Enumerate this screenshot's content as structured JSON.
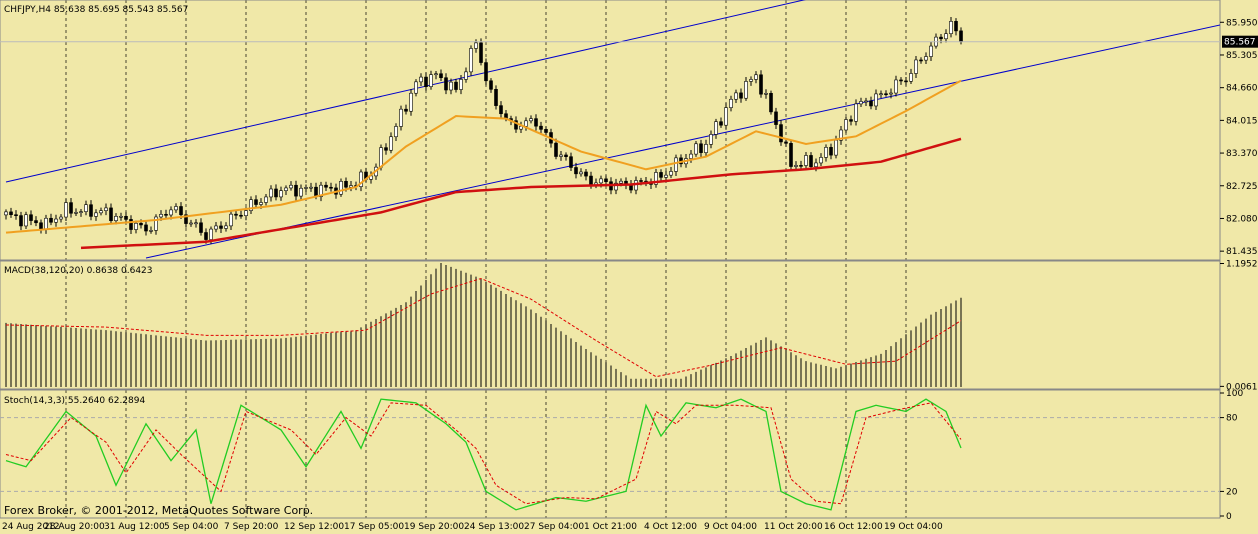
{
  "chart_data": {
    "type": "candlestick",
    "symbol_header": "CHFJPY,H4  85.638 85.695 85.543 85.567",
    "current_price": 85.567,
    "current_price_label": "85.567",
    "price_axis": {
      "range": [
        81.3,
        86.35
      ],
      "ticks": [
        "85.950",
        "85.305",
        "84.660",
        "84.015",
        "83.370",
        "82.725",
        "82.080",
        "81.435"
      ]
    },
    "time_labels": [
      "24 Aug 2012",
      "28 Aug 20:00",
      "31 Aug 12:00",
      "5 Sep 04:00",
      "7 Sep 20:00",
      "12 Sep 12:00",
      "17 Sep 05:00",
      "19 Sep 20:00",
      "24 Sep 13:00",
      "27 Sep 04:00",
      "1 Oct 21:00",
      "4 Oct 12:00",
      "9 Oct 04:00",
      "11 Oct 20:00",
      "16 Oct 12:00",
      "19 Oct 04:00"
    ],
    "close_keypoints": [
      {
        "bar": 0,
        "price": 82.15
      },
      {
        "bar": 8,
        "price": 81.95
      },
      {
        "bar": 12,
        "price": 82.25
      },
      {
        "bar": 20,
        "price": 82.2
      },
      {
        "bar": 28,
        "price": 81.85
      },
      {
        "bar": 33,
        "price": 82.3
      },
      {
        "bar": 40,
        "price": 81.75
      },
      {
        "bar": 44,
        "price": 82.0
      },
      {
        "bar": 50,
        "price": 82.4
      },
      {
        "bar": 55,
        "price": 82.65
      },
      {
        "bar": 62,
        "price": 82.65
      },
      {
        "bar": 68,
        "price": 82.7
      },
      {
        "bar": 73,
        "price": 82.95
      },
      {
        "bar": 78,
        "price": 83.9
      },
      {
        "bar": 82,
        "price": 84.75
      },
      {
        "bar": 86,
        "price": 84.9
      },
      {
        "bar": 90,
        "price": 84.6
      },
      {
        "bar": 94,
        "price": 85.55
      },
      {
        "bar": 97,
        "price": 84.5
      },
      {
        "bar": 101,
        "price": 83.9
      },
      {
        "bar": 106,
        "price": 84.0
      },
      {
        "bar": 110,
        "price": 83.4
      },
      {
        "bar": 116,
        "price": 82.85
      },
      {
        "bar": 121,
        "price": 82.75
      },
      {
        "bar": 126,
        "price": 82.75
      },
      {
        "bar": 131,
        "price": 82.9
      },
      {
        "bar": 136,
        "price": 83.3
      },
      {
        "bar": 140,
        "price": 83.55
      },
      {
        "bar": 145,
        "price": 84.4
      },
      {
        "bar": 150,
        "price": 84.9
      },
      {
        "bar": 154,
        "price": 83.95
      },
      {
        "bar": 157,
        "price": 83.15
      },
      {
        "bar": 162,
        "price": 83.2
      },
      {
        "bar": 165,
        "price": 83.45
      },
      {
        "bar": 170,
        "price": 84.3
      },
      {
        "bar": 175,
        "price": 84.5
      },
      {
        "bar": 180,
        "price": 84.85
      },
      {
        "bar": 184,
        "price": 85.35
      },
      {
        "bar": 189,
        "price": 85.9
      },
      {
        "bar": 191,
        "price": 85.567
      }
    ],
    "moving_averages": [
      {
        "color": "#f0a020",
        "points": [
          {
            "bar": 0,
            "price": 81.8
          },
          {
            "bar": 30,
            "price": 82.05
          },
          {
            "bar": 55,
            "price": 82.35
          },
          {
            "bar": 70,
            "price": 82.7
          },
          {
            "bar": 80,
            "price": 83.5
          },
          {
            "bar": 90,
            "price": 84.1
          },
          {
            "bar": 100,
            "price": 84.05
          },
          {
            "bar": 115,
            "price": 83.4
          },
          {
            "bar": 128,
            "price": 83.05
          },
          {
            "bar": 140,
            "price": 83.3
          },
          {
            "bar": 150,
            "price": 83.8
          },
          {
            "bar": 160,
            "price": 83.55
          },
          {
            "bar": 170,
            "price": 83.7
          },
          {
            "bar": 180,
            "price": 84.2
          },
          {
            "bar": 191,
            "price": 84.8
          }
        ]
      },
      {
        "color": "#d01010",
        "points": [
          {
            "bar": 15,
            "price": 81.5
          },
          {
            "bar": 40,
            "price": 81.62
          },
          {
            "bar": 60,
            "price": 81.95
          },
          {
            "bar": 75,
            "price": 82.2
          },
          {
            "bar": 90,
            "price": 82.6
          },
          {
            "bar": 105,
            "price": 82.7
          },
          {
            "bar": 125,
            "price": 82.75
          },
          {
            "bar": 145,
            "price": 82.95
          },
          {
            "bar": 160,
            "price": 83.05
          },
          {
            "bar": 175,
            "price": 83.2
          },
          {
            "bar": 191,
            "price": 83.65
          }
        ]
      }
    ],
    "trend_lines": [
      {
        "color": "#0000cc",
        "from": {
          "bar": 0,
          "price": 82.8
        },
        "to": {
          "bar": 160,
          "price": 86.4
        }
      },
      {
        "color": "#0000cc",
        "from": {
          "bar": 28,
          "price": 81.3
        },
        "to": {
          "bar": 243,
          "price": 85.9
        }
      }
    ],
    "macd": {
      "label": "MACD(38,120,20)  0.8638 0.6423",
      "range": [
        0.0,
        1.2
      ],
      "ticks": [
        "1.1952",
        "0.0061"
      ],
      "hist_keypoints": [
        {
          "bar": 0,
          "value": 0.62
        },
        {
          "bar": 20,
          "value": 0.55
        },
        {
          "bar": 40,
          "value": 0.45
        },
        {
          "bar": 55,
          "value": 0.47
        },
        {
          "bar": 70,
          "value": 0.55
        },
        {
          "bar": 80,
          "value": 0.82
        },
        {
          "bar": 87,
          "value": 1.2
        },
        {
          "bar": 95,
          "value": 1.05
        },
        {
          "bar": 105,
          "value": 0.75
        },
        {
          "bar": 115,
          "value": 0.4
        },
        {
          "bar": 125,
          "value": 0.08
        },
        {
          "bar": 135,
          "value": 0.08
        },
        {
          "bar": 145,
          "value": 0.3
        },
        {
          "bar": 152,
          "value": 0.48
        },
        {
          "bar": 160,
          "value": 0.25
        },
        {
          "bar": 166,
          "value": 0.18
        },
        {
          "bar": 175,
          "value": 0.32
        },
        {
          "bar": 185,
          "value": 0.7
        },
        {
          "bar": 191,
          "value": 0.8638
        }
      ],
      "signal_keypoints": [
        {
          "bar": 0,
          "value": 0.6
        },
        {
          "bar": 20,
          "value": 0.58
        },
        {
          "bar": 40,
          "value": 0.5
        },
        {
          "bar": 55,
          "value": 0.5
        },
        {
          "bar": 72,
          "value": 0.55
        },
        {
          "bar": 85,
          "value": 0.9
        },
        {
          "bar": 95,
          "value": 1.05
        },
        {
          "bar": 105,
          "value": 0.85
        },
        {
          "bar": 118,
          "value": 0.45
        },
        {
          "bar": 130,
          "value": 0.1
        },
        {
          "bar": 140,
          "value": 0.2
        },
        {
          "bar": 155,
          "value": 0.38
        },
        {
          "bar": 168,
          "value": 0.22
        },
        {
          "bar": 178,
          "value": 0.25
        },
        {
          "bar": 191,
          "value": 0.6423
        }
      ]
    },
    "stochastic": {
      "label": "Stoch(14,3,3)  55.2640 62.2894",
      "range": [
        0,
        100
      ],
      "ticks": [
        "100",
        "80",
        "20",
        "0"
      ],
      "levels": [
        80,
        20
      ],
      "k_keypoints": [
        {
          "bar": 0,
          "value": 45
        },
        {
          "bar": 4,
          "value": 40
        },
        {
          "bar": 12,
          "value": 85
        },
        {
          "bar": 18,
          "value": 65
        },
        {
          "bar": 22,
          "value": 25
        },
        {
          "bar": 28,
          "value": 75
        },
        {
          "bar": 33,
          "value": 45
        },
        {
          "bar": 38,
          "value": 70
        },
        {
          "bar": 41,
          "value": 10
        },
        {
          "bar": 47,
          "value": 90
        },
        {
          "bar": 55,
          "value": 70
        },
        {
          "bar": 60,
          "value": 40
        },
        {
          "bar": 67,
          "value": 85
        },
        {
          "bar": 71,
          "value": 55
        },
        {
          "bar": 75,
          "value": 95
        },
        {
          "bar": 82,
          "value": 92
        },
        {
          "bar": 88,
          "value": 75
        },
        {
          "bar": 92,
          "value": 60
        },
        {
          "bar": 96,
          "value": 20
        },
        {
          "bar": 102,
          "value": 5
        },
        {
          "bar": 110,
          "value": 15
        },
        {
          "bar": 116,
          "value": 12
        },
        {
          "bar": 124,
          "value": 20
        },
        {
          "bar": 128,
          "value": 90
        },
        {
          "bar": 131,
          "value": 65
        },
        {
          "bar": 136,
          "value": 92
        },
        {
          "bar": 142,
          "value": 88
        },
        {
          "bar": 147,
          "value": 95
        },
        {
          "bar": 152,
          "value": 85
        },
        {
          "bar": 155,
          "value": 20
        },
        {
          "bar": 160,
          "value": 10
        },
        {
          "bar": 165,
          "value": 5
        },
        {
          "bar": 170,
          "value": 85
        },
        {
          "bar": 174,
          "value": 90
        },
        {
          "bar": 180,
          "value": 85
        },
        {
          "bar": 184,
          "value": 95
        },
        {
          "bar": 188,
          "value": 85
        },
        {
          "bar": 191,
          "value": 55.264
        }
      ],
      "d_keypoints": [
        {
          "bar": 0,
          "value": 50
        },
        {
          "bar": 5,
          "value": 45
        },
        {
          "bar": 13,
          "value": 80
        },
        {
          "bar": 20,
          "value": 60
        },
        {
          "bar": 24,
          "value": 35
        },
        {
          "bar": 30,
          "value": 70
        },
        {
          "bar": 35,
          "value": 50
        },
        {
          "bar": 43,
          "value": 20
        },
        {
          "bar": 48,
          "value": 85
        },
        {
          "bar": 57,
          "value": 70
        },
        {
          "bar": 62,
          "value": 50
        },
        {
          "bar": 68,
          "value": 80
        },
        {
          "bar": 73,
          "value": 65
        },
        {
          "bar": 77,
          "value": 92
        },
        {
          "bar": 84,
          "value": 90
        },
        {
          "bar": 90,
          "value": 70
        },
        {
          "bar": 94,
          "value": 55
        },
        {
          "bar": 98,
          "value": 25
        },
        {
          "bar": 104,
          "value": 10
        },
        {
          "bar": 112,
          "value": 15
        },
        {
          "bar": 118,
          "value": 14
        },
        {
          "bar": 126,
          "value": 30
        },
        {
          "bar": 130,
          "value": 85
        },
        {
          "bar": 134,
          "value": 75
        },
        {
          "bar": 138,
          "value": 90
        },
        {
          "bar": 146,
          "value": 90
        },
        {
          "bar": 153,
          "value": 88
        },
        {
          "bar": 157,
          "value": 30
        },
        {
          "bar": 162,
          "value": 12
        },
        {
          "bar": 167,
          "value": 10
        },
        {
          "bar": 172,
          "value": 80
        },
        {
          "bar": 178,
          "value": 86
        },
        {
          "bar": 185,
          "value": 92
        },
        {
          "bar": 191,
          "value": 62.2894
        }
      ]
    },
    "copyright": "Forex Broker, © 2001-2012, MetaQuotes Software Corp."
  }
}
